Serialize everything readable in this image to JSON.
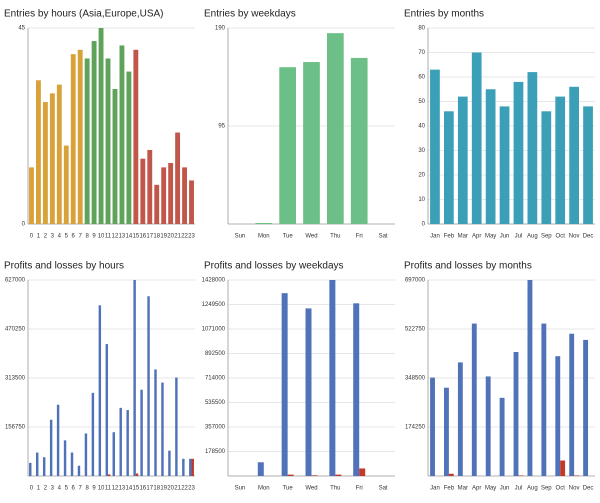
{
  "chart_data": [
    {
      "type": "bar",
      "title": "Entries by hours (Asia,Europe,USA)",
      "categories": [
        "0",
        "1",
        "2",
        "3",
        "4",
        "5",
        "6",
        "7",
        "8",
        "9",
        "10",
        "11",
        "12",
        "13",
        "14",
        "15",
        "16",
        "17",
        "18",
        "19",
        "20",
        "21",
        "22",
        "23"
      ],
      "values": [
        13,
        33,
        28,
        30,
        32,
        18,
        39,
        40,
        38,
        42,
        45,
        38,
        31,
        41,
        35,
        40,
        15,
        17,
        9,
        13,
        14,
        21,
        13,
        10
      ],
      "colors": [
        "#d9a13a",
        "#d9a13a",
        "#d9a13a",
        "#d9a13a",
        "#d9a13a",
        "#d9a13a",
        "#d9a13a",
        "#d9a13a",
        "#5fa35a",
        "#5fa35a",
        "#5fa35a",
        "#5fa35a",
        "#5fa35a",
        "#5fa35a",
        "#5fa35a",
        "#c0574a",
        "#c0574a",
        "#c0574a",
        "#c0574a",
        "#c0574a",
        "#c0574a",
        "#c0574a",
        "#c0574a",
        "#c0574a"
      ],
      "ylim": [
        0,
        45
      ],
      "yticks": [
        0,
        45
      ],
      "grid": true
    },
    {
      "type": "bar",
      "title": "Entries by weekdays",
      "categories": [
        "Sun",
        "Mon",
        "Tue",
        "Wed",
        "Thu",
        "Fri",
        "Sat"
      ],
      "values": [
        0,
        1,
        152,
        157,
        185,
        161,
        0
      ],
      "color": "#6cbf86",
      "ylim": [
        0,
        190
      ],
      "yticks": [
        95,
        190
      ],
      "grid": true
    },
    {
      "type": "bar",
      "title": "Entries by months",
      "categories": [
        "Jan",
        "Feb",
        "Mar",
        "Apr",
        "May",
        "Jun",
        "Jul",
        "Aug",
        "Sep",
        "Oct",
        "Nov",
        "Dec"
      ],
      "values": [
        63,
        46,
        52,
        70,
        55,
        48,
        58,
        62,
        46,
        52,
        56,
        48
      ],
      "color": "#3b9fb8",
      "ylim": [
        0,
        80
      ],
      "yticks": [
        0,
        10,
        20,
        30,
        40,
        50,
        60,
        70,
        80
      ],
      "grid": true
    },
    {
      "type": "grouped-bar",
      "title": "Profits and losses by hours",
      "categories": [
        "0",
        "1",
        "2",
        "3",
        "4",
        "5",
        "6",
        "7",
        "8",
        "9",
        "10",
        "11",
        "12",
        "13",
        "14",
        "15",
        "16",
        "17",
        "18",
        "19",
        "20",
        "21",
        "22",
        "23"
      ],
      "series": [
        {
          "color": "#4f72b8",
          "values": [
            42000,
            75000,
            60000,
            180000,
            228000,
            114000,
            75000,
            33000,
            136000,
            266000,
            546000,
            422000,
            140000,
            218000,
            211000,
            627000,
            276000,
            575000,
            341000,
            299000,
            81000,
            315000,
            55000,
            55000
          ]
        },
        {
          "color": "#c0392b",
          "values": [
            0,
            0,
            0,
            0,
            0,
            0,
            0,
            0,
            0,
            0,
            0,
            5000,
            0,
            0,
            0,
            8000,
            0,
            0,
            0,
            0,
            0,
            0,
            0,
            55000
          ]
        }
      ],
      "ylim": [
        0,
        627000
      ],
      "yticks": [
        156750,
        313500,
        470250,
        627000
      ],
      "grid": true
    },
    {
      "type": "grouped-bar",
      "title": "Profits and losses by weekdays",
      "categories": [
        "Sun",
        "Mon",
        "Tue",
        "Wed",
        "Thu",
        "Fri",
        "Sat"
      ],
      "series": [
        {
          "color": "#4f72b8",
          "values": [
            0,
            100000,
            1332000,
            1221000,
            1428000,
            1258000,
            0
          ]
        },
        {
          "color": "#c0392b",
          "values": [
            0,
            0,
            10000,
            5000,
            10000,
            55000,
            0
          ]
        }
      ],
      "ylim": [
        0,
        1428000
      ],
      "yticks": [
        178500,
        357000,
        535500,
        714000,
        892500,
        1071000,
        1249500,
        1428000
      ],
      "grid": true
    },
    {
      "type": "grouped-bar",
      "title": "Profits and losses by months",
      "categories": [
        "Jan",
        "Feb",
        "Mar",
        "Apr",
        "May",
        "Jun",
        "Jul",
        "Aug",
        "Sep",
        "Oct",
        "Nov",
        "Dec"
      ],
      "series": [
        {
          "color": "#4f72b8",
          "values": [
            350000,
            314000,
            404000,
            542000,
            354000,
            278000,
            441000,
            697000,
            542000,
            426000,
            506000,
            484000
          ]
        },
        {
          "color": "#c0392b",
          "values": [
            0,
            8000,
            0,
            0,
            0,
            0,
            2000,
            0,
            0,
            55000,
            2000,
            0
          ]
        }
      ],
      "ylim": [
        0,
        697000
      ],
      "yticks": [
        174250,
        348500,
        522750,
        697000
      ],
      "grid": true
    }
  ]
}
